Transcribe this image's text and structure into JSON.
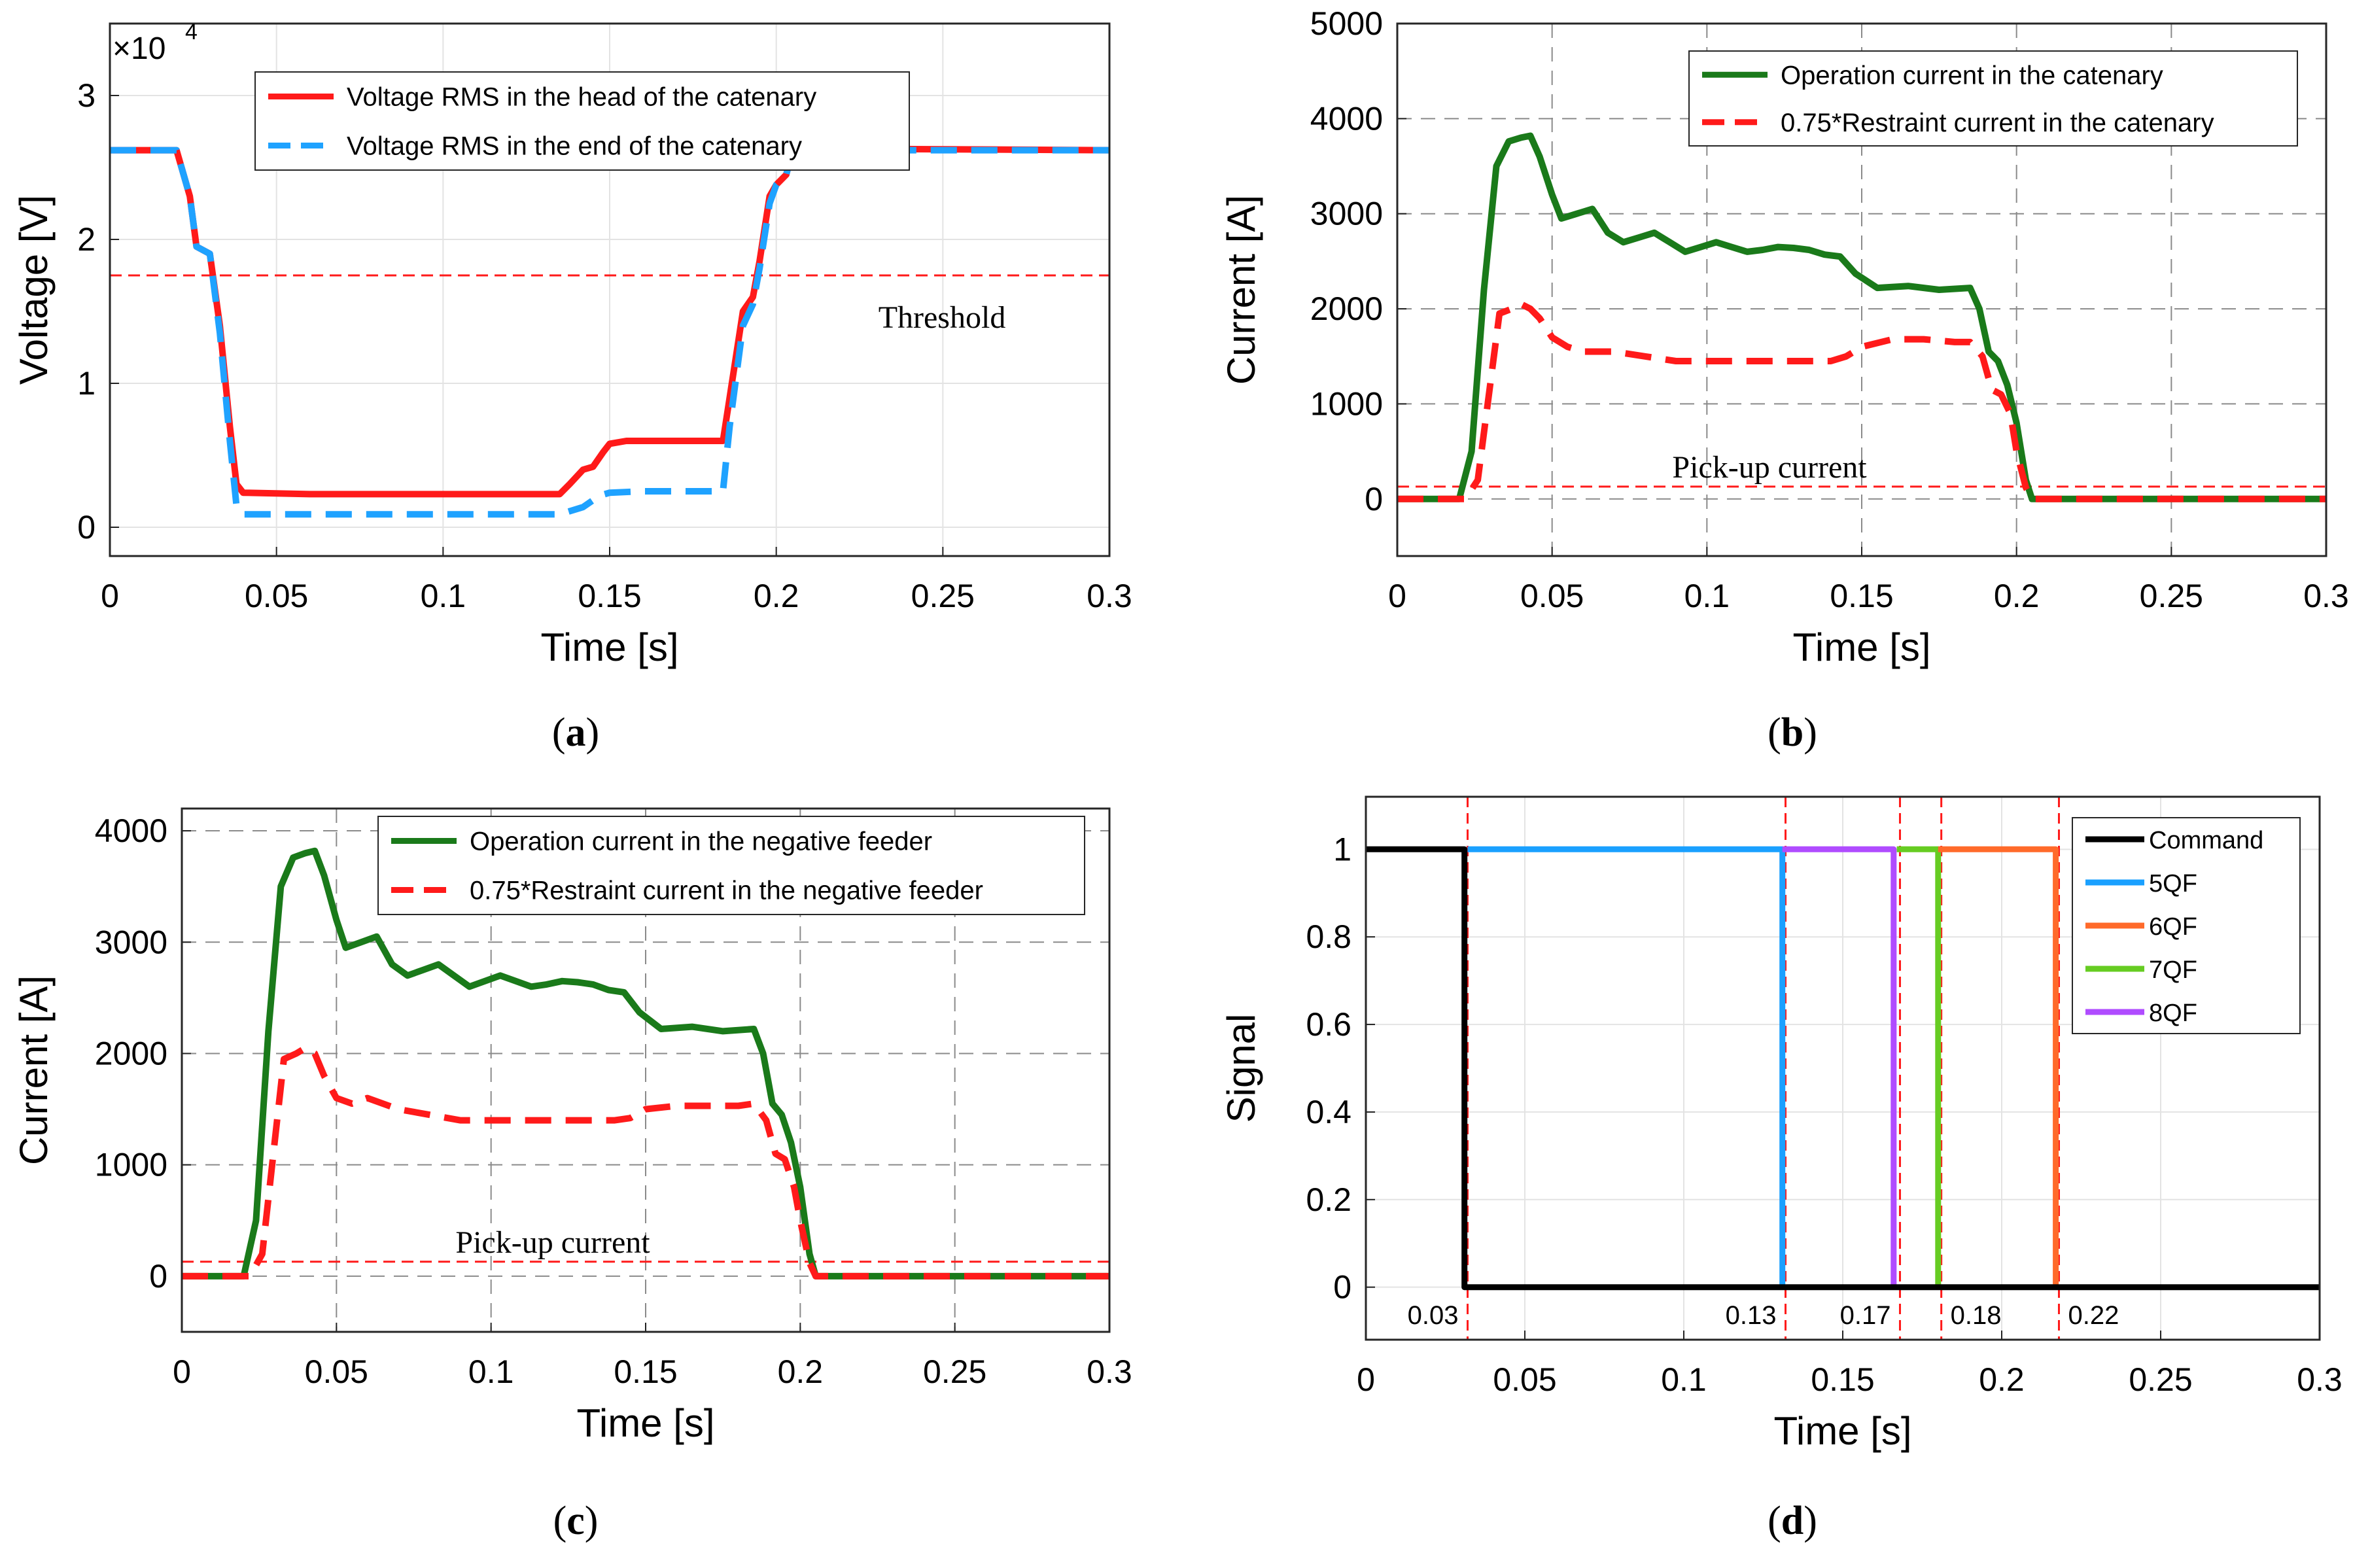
{
  "chart_data": [
    {
      "id": "a",
      "type": "line",
      "caption_label": "a",
      "xlabel": "Time [s]",
      "ylabel": "Voltage [V]",
      "xlim": [
        0,
        0.3
      ],
      "ylim": [
        -0.2,
        3.5
      ],
      "xticks": [
        0,
        0.05,
        0.1,
        0.15,
        0.2,
        0.25,
        0.3
      ],
      "xtick_labels": [
        "0",
        "0.05",
        "0.1",
        "0.15",
        "0.2",
        "0.25",
        "0.3"
      ],
      "yticks": [
        0,
        1,
        2,
        3
      ],
      "ytick_labels": [
        "0",
        "1",
        "2",
        "3"
      ],
      "y_multiplier": {
        "base": "10",
        "exponent": "4"
      },
      "grid": "solid",
      "threshold": {
        "y": 1.75,
        "label": "Threshold"
      },
      "legend": {
        "position": "top-center"
      },
      "series": [
        {
          "name": "Voltage RMS in the head of the catenary",
          "color": "#ff1a1a",
          "style": "solid",
          "x": [
            0,
            0.02,
            0.024,
            0.026,
            0.03,
            0.033,
            0.036,
            0.038,
            0.04,
            0.06,
            0.1,
            0.135,
            0.138,
            0.142,
            0.145,
            0.148,
            0.15,
            0.155,
            0.16,
            0.184,
            0.186,
            0.19,
            0.193,
            0.195,
            0.198,
            0.2,
            0.203,
            0.205,
            0.22,
            0.3
          ],
          "y": [
            2.62,
            2.62,
            2.3,
            1.95,
            1.9,
            1.4,
            0.7,
            0.3,
            0.24,
            0.23,
            0.23,
            0.23,
            0.3,
            0.4,
            0.42,
            0.52,
            0.58,
            0.6,
            0.6,
            0.6,
            0.9,
            1.5,
            1.6,
            1.85,
            2.3,
            2.38,
            2.45,
            2.62,
            2.63,
            2.62
          ]
        },
        {
          "name": "Voltage RMS in the end of the catenary",
          "color": "#1fa2ff",
          "style": "dashed",
          "x": [
            0,
            0.02,
            0.024,
            0.026,
            0.03,
            0.033,
            0.036,
            0.038,
            0.04,
            0.06,
            0.1,
            0.135,
            0.142,
            0.147,
            0.15,
            0.16,
            0.184,
            0.186,
            0.19,
            0.193,
            0.195,
            0.198,
            0.2,
            0.203,
            0.205,
            0.22,
            0.3
          ],
          "y": [
            2.62,
            2.62,
            2.3,
            1.95,
            1.9,
            1.35,
            0.6,
            0.15,
            0.09,
            0.09,
            0.09,
            0.09,
            0.14,
            0.22,
            0.24,
            0.25,
            0.25,
            0.7,
            1.4,
            1.55,
            1.8,
            2.25,
            2.38,
            2.45,
            2.62,
            2.62,
            2.62
          ]
        }
      ]
    },
    {
      "id": "b",
      "type": "line",
      "caption_label": "b",
      "xlabel": "Time [s]",
      "ylabel": "Current [A]",
      "xlim": [
        0,
        0.3
      ],
      "ylim": [
        -600,
        5000
      ],
      "xticks": [
        0,
        0.05,
        0.1,
        0.15,
        0.2,
        0.25,
        0.3
      ],
      "xtick_labels": [
        "0",
        "0.05",
        "0.1",
        "0.15",
        "0.2",
        "0.25",
        "0.3"
      ],
      "yticks": [
        0,
        1000,
        2000,
        3000,
        4000,
        5000
      ],
      "ytick_labels": [
        "0",
        "1000",
        "2000",
        "3000",
        "4000",
        "5000"
      ],
      "grid": "dashed",
      "threshold": {
        "y": 130,
        "label": "Pick-up current"
      },
      "legend": {
        "position": "top-right"
      },
      "series": [
        {
          "name": "Operation current in the catenary",
          "color": "#1a7a1a",
          "style": "solid",
          "x": [
            0,
            0.02,
            0.024,
            0.028,
            0.032,
            0.036,
            0.04,
            0.043,
            0.046,
            0.05,
            0.053,
            0.058,
            0.063,
            0.068,
            0.073,
            0.078,
            0.083,
            0.088,
            0.093,
            0.098,
            0.103,
            0.108,
            0.113,
            0.118,
            0.123,
            0.128,
            0.133,
            0.138,
            0.143,
            0.148,
            0.155,
            0.165,
            0.175,
            0.185,
            0.188,
            0.191,
            0.194,
            0.197,
            0.2,
            0.203,
            0.205,
            0.3
          ],
          "y": [
            0,
            0,
            500,
            2200,
            3500,
            3760,
            3800,
            3820,
            3600,
            3200,
            2950,
            3000,
            3050,
            2800,
            2700,
            2750,
            2800,
            2700,
            2600,
            2650,
            2700,
            2650,
            2600,
            2620,
            2650,
            2640,
            2620,
            2570,
            2550,
            2370,
            2220,
            2240,
            2200,
            2220,
            2000,
            1550,
            1450,
            1200,
            800,
            200,
            0,
            0
          ]
        },
        {
          "name": "0.75*Restraint current in the catenary",
          "color": "#ff1a1a",
          "style": "dashed",
          "x": [
            0,
            0.022,
            0.026,
            0.03,
            0.033,
            0.037,
            0.04,
            0.043,
            0.046,
            0.05,
            0.055,
            0.06,
            0.07,
            0.08,
            0.09,
            0.1,
            0.12,
            0.14,
            0.145,
            0.15,
            0.16,
            0.17,
            0.18,
            0.185,
            0.189,
            0.192,
            0.195,
            0.198,
            0.2,
            0.203,
            0.205,
            0.3
          ],
          "y": [
            0,
            0,
            200,
            1200,
            1950,
            2000,
            2050,
            2000,
            1900,
            1700,
            1600,
            1550,
            1550,
            1500,
            1450,
            1450,
            1450,
            1450,
            1500,
            1600,
            1680,
            1680,
            1650,
            1650,
            1500,
            1150,
            1100,
            900,
            500,
            120,
            0,
            0
          ]
        }
      ]
    },
    {
      "id": "c",
      "type": "line",
      "caption_label": "c",
      "xlabel": "Time [s]",
      "ylabel": "Current [A]",
      "xlim": [
        0,
        0.3
      ],
      "ylim": [
        -500,
        4200
      ],
      "xticks": [
        0,
        0.05,
        0.1,
        0.15,
        0.2,
        0.25,
        0.3
      ],
      "xtick_labels": [
        "0",
        "0.05",
        "0.1",
        "0.15",
        "0.2",
        "0.25",
        "0.3"
      ],
      "yticks": [
        0,
        1000,
        2000,
        3000,
        4000
      ],
      "ytick_labels": [
        "0",
        "1000",
        "2000",
        "3000",
        "4000"
      ],
      "grid": "dashed",
      "threshold": {
        "y": 130,
        "label": "Pick-up current"
      },
      "legend": {
        "position": "top-right"
      },
      "series": [
        {
          "name": "Operation current in the negative feeder",
          "color": "#1a7a1a",
          "style": "solid",
          "x": [
            0,
            0.02,
            0.024,
            0.028,
            0.032,
            0.036,
            0.04,
            0.043,
            0.046,
            0.05,
            0.053,
            0.058,
            0.063,
            0.068,
            0.073,
            0.078,
            0.083,
            0.088,
            0.093,
            0.098,
            0.103,
            0.108,
            0.113,
            0.118,
            0.123,
            0.128,
            0.133,
            0.138,
            0.143,
            0.148,
            0.155,
            0.165,
            0.175,
            0.185,
            0.188,
            0.191,
            0.194,
            0.197,
            0.2,
            0.203,
            0.205,
            0.3
          ],
          "y": [
            0,
            0,
            500,
            2200,
            3500,
            3760,
            3800,
            3820,
            3600,
            3200,
            2950,
            3000,
            3050,
            2800,
            2700,
            2750,
            2800,
            2700,
            2600,
            2650,
            2700,
            2650,
            2600,
            2620,
            2650,
            2640,
            2620,
            2570,
            2550,
            2370,
            2220,
            2240,
            2200,
            2220,
            2000,
            1550,
            1450,
            1200,
            800,
            200,
            0,
            0
          ]
        },
        {
          "name": "0.75*Restraint current in the negative feeder",
          "color": "#ff1a1a",
          "style": "dashed",
          "x": [
            0,
            0.022,
            0.026,
            0.03,
            0.033,
            0.037,
            0.04,
            0.043,
            0.046,
            0.05,
            0.055,
            0.06,
            0.07,
            0.08,
            0.09,
            0.1,
            0.12,
            0.14,
            0.145,
            0.15,
            0.16,
            0.17,
            0.18,
            0.185,
            0.189,
            0.192,
            0.195,
            0.198,
            0.2,
            0.203,
            0.205,
            0.3
          ],
          "y": [
            0,
            0,
            200,
            1200,
            1950,
            2000,
            2050,
            2000,
            1800,
            1600,
            1550,
            1600,
            1500,
            1450,
            1400,
            1400,
            1400,
            1400,
            1420,
            1500,
            1530,
            1530,
            1530,
            1550,
            1400,
            1100,
            1050,
            800,
            500,
            120,
            0,
            0
          ]
        }
      ]
    },
    {
      "id": "d",
      "type": "line",
      "caption_label": "d",
      "xlabel": "Time [s]",
      "ylabel": "Signal",
      "xlim": [
        0,
        0.3
      ],
      "ylim": [
        -0.12,
        1.12
      ],
      "xticks": [
        0,
        0.05,
        0.1,
        0.15,
        0.2,
        0.25,
        0.3
      ],
      "xtick_labels": [
        "0",
        "0.05",
        "0.1",
        "0.15",
        "0.2",
        "0.25",
        "0.3"
      ],
      "yticks": [
        0,
        0.2,
        0.4,
        0.6,
        0.8,
        1
      ],
      "ytick_labels": [
        "0",
        "0.2",
        "0.4",
        "0.6",
        "0.8",
        "1"
      ],
      "grid": "solid",
      "legend": {
        "position": "top-right"
      },
      "vlines": [
        {
          "x": 0.032,
          "label": "0.03"
        },
        {
          "x": 0.132,
          "label": "0.13"
        },
        {
          "x": 0.168,
          "label": "0.17"
        },
        {
          "x": 0.181,
          "label": "0.18"
        },
        {
          "x": 0.218,
          "label": "0.22"
        }
      ],
      "series": [
        {
          "name": "Command",
          "color": "#000000",
          "style": "solid",
          "x": [
            0,
            0.031,
            0.031,
            0.3
          ],
          "y": [
            1,
            1,
            0,
            0
          ]
        },
        {
          "name": "5QF",
          "color": "#1aa0ff",
          "style": "solid",
          "x": [
            0.032,
            0.131,
            0.131
          ],
          "y": [
            1,
            1,
            0
          ]
        },
        {
          "name": "6QF",
          "color": "#ff6a2a",
          "style": "solid",
          "x": [
            0.18,
            0.217,
            0.217
          ],
          "y": [
            1,
            1,
            0
          ]
        },
        {
          "name": "7QF",
          "color": "#66cc22",
          "style": "solid",
          "x": [
            0.167,
            0.18,
            0.18
          ],
          "y": [
            1,
            1,
            0
          ]
        },
        {
          "name": "8QF",
          "color": "#b04cff",
          "style": "solid",
          "x": [
            0.131,
            0.166,
            0.166
          ],
          "y": [
            1,
            1,
            0
          ]
        }
      ]
    }
  ]
}
